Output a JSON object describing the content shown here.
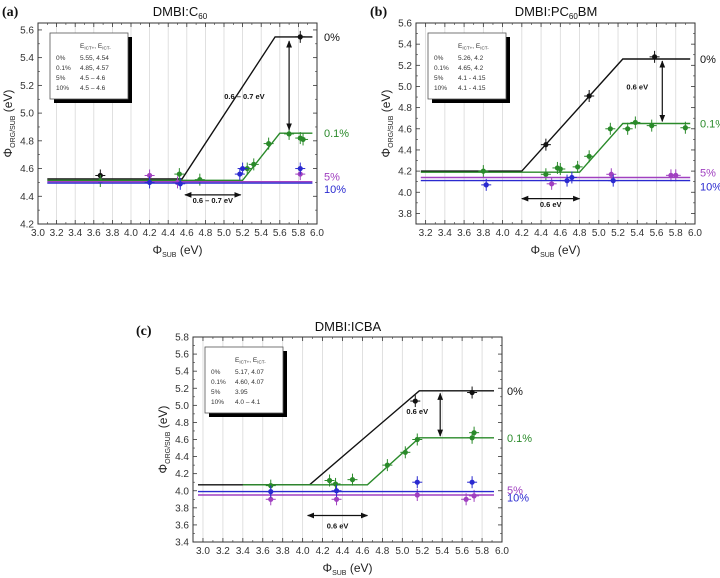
{
  "chart_data": [
    {
      "type": "line",
      "panel_label": "(a)",
      "title": "DMBI:C",
      "title_sub": "60",
      "title_suffix": "",
      "xlabel": "Φ",
      "xlabel_sub": "SUB",
      "xlabel_suffix": " (eV)",
      "ylabel": "Φ",
      "ylabel_sub": "ORG/SUB",
      "ylabel_suffix": " (eV)",
      "xlim": [
        3.0,
        6.0
      ],
      "ylim": [
        4.2,
        5.65
      ],
      "xticks": [
        3.0,
        3.2,
        3.4,
        3.6,
        3.8,
        4.0,
        4.2,
        4.4,
        4.6,
        4.8,
        5.0,
        5.2,
        5.4,
        5.6,
        5.8,
        6.0
      ],
      "yticks": [
        4.2,
        4.4,
        4.6,
        4.8,
        5.0,
        5.2,
        5.4,
        5.6
      ],
      "grid": "vertical",
      "legend_table": {
        "header": [
          "",
          "E_ICT+",
          "E_ICT-"
        ],
        "rows": [
          [
            "0%",
            "5.55,  4.54"
          ],
          [
            "0.1%",
            "4.85,  4.57"
          ],
          [
            "5%",
            "4.5 – 4.6"
          ],
          [
            "10%",
            "4.5 – 4.6"
          ]
        ]
      },
      "series": [
        {
          "name": "0%",
          "color": "#111111",
          "line": [
            [
              3.1,
              4.525
            ],
            [
              4.55,
              4.525
            ],
            [
              5.55,
              5.55
            ],
            [
              5.95,
              5.55
            ]
          ],
          "points": [
            [
              3.67,
              4.55
            ],
            [
              5.82,
              5.55
            ]
          ]
        },
        {
          "name": "0.1%",
          "color": "#2a8a2a",
          "line": [
            [
              3.1,
              4.515
            ],
            [
              5.2,
              4.515
            ],
            [
              5.6,
              4.855
            ],
            [
              5.95,
              4.855
            ]
          ],
          "points": [
            [
              3.67,
              4.51
            ],
            [
              4.52,
              4.56
            ],
            [
              4.74,
              4.52
            ],
            [
              5.25,
              4.6
            ],
            [
              5.32,
              4.63
            ],
            [
              5.48,
              4.78
            ],
            [
              5.7,
              4.85
            ],
            [
              5.82,
              4.82
            ],
            [
              5.85,
              4.81
            ]
          ]
        },
        {
          "name": "5%",
          "color": "#a040c0",
          "line": [
            [
              3.1,
              4.505
            ],
            [
              5.95,
              4.505
            ]
          ],
          "points": [
            [
              4.2,
              4.55
            ],
            [
              4.5,
              4.5
            ],
            [
              5.82,
              4.56
            ]
          ]
        },
        {
          "name": "10%",
          "color": "#2a2ad0",
          "line": [
            [
              3.1,
              4.495
            ],
            [
              5.95,
              4.495
            ]
          ],
          "points": [
            [
              4.2,
              4.5
            ],
            [
              4.53,
              4.49
            ],
            [
              5.17,
              4.56
            ],
            [
              5.2,
              4.6
            ],
            [
              5.82,
              4.6
            ]
          ]
        }
      ],
      "annotations": [
        {
          "text": "0.6 – 0.7 eV",
          "type": "vertical-arrow",
          "x": 5.7,
          "y1": 5.52,
          "y2": 4.88,
          "label_x": 5.22,
          "label_y": 5.1
        },
        {
          "text": "0.6 – 0.7 eV",
          "type": "horizontal-arrow",
          "y": 4.41,
          "x1": 4.58,
          "x2": 5.18,
          "label_x": 4.88,
          "label_y": 4.35
        }
      ]
    },
    {
      "type": "line",
      "panel_label": "(b)",
      "title": "DMBI:PC",
      "title_sub": "60",
      "title_suffix": "BM",
      "xlabel": "Φ",
      "xlabel_sub": "SUB",
      "xlabel_suffix": " (eV)",
      "ylabel": "Φ",
      "ylabel_sub": "ORG/SUB",
      "ylabel_suffix": " (eV)",
      "xlim": [
        3.1,
        6.0
      ],
      "ylim": [
        3.7,
        5.6
      ],
      "xticks": [
        3.2,
        3.4,
        3.6,
        3.8,
        4.0,
        4.2,
        4.4,
        4.6,
        4.8,
        5.0,
        5.2,
        5.4,
        5.6,
        5.8,
        6.0
      ],
      "yticks": [
        3.8,
        4.0,
        4.2,
        4.4,
        4.6,
        4.8,
        5.0,
        5.2,
        5.4,
        5.6
      ],
      "grid": "vertical",
      "legend_table": {
        "header": [
          "",
          "E_ICT+",
          "E_ICT-"
        ],
        "rows": [
          [
            "0%",
            "5.26,  4.2"
          ],
          [
            "0.1%",
            "4.65,  4.2"
          ],
          [
            "5%",
            "4.1 - 4.15"
          ],
          [
            "10%",
            "4.1 - 4.15"
          ]
        ]
      },
      "series": [
        {
          "name": "0%",
          "color": "#111111",
          "line": [
            [
              3.15,
              4.2
            ],
            [
              4.2,
              4.2
            ],
            [
              5.25,
              5.26
            ],
            [
              5.95,
              5.26
            ]
          ],
          "points": [
            [
              4.45,
              4.45
            ],
            [
              4.9,
              4.91
            ],
            [
              5.58,
              5.28
            ]
          ]
        },
        {
          "name": "0.1%",
          "color": "#2a8a2a",
          "line": [
            [
              3.15,
              4.19
            ],
            [
              4.8,
              4.19
            ],
            [
              5.25,
              4.65
            ],
            [
              5.95,
              4.65
            ]
          ],
          "points": [
            [
              3.8,
              4.2
            ],
            [
              4.45,
              4.17
            ],
            [
              4.57,
              4.23
            ],
            [
              4.6,
              4.22
            ],
            [
              4.78,
              4.24
            ],
            [
              4.9,
              4.34
            ],
            [
              5.12,
              4.6
            ],
            [
              5.3,
              4.6
            ],
            [
              5.38,
              4.66
            ],
            [
              5.55,
              4.63
            ],
            [
              5.9,
              4.61
            ]
          ]
        },
        {
          "name": "5%",
          "color": "#a040c0",
          "line": [
            [
              3.15,
              4.14
            ],
            [
              5.95,
              4.14
            ]
          ],
          "points": [
            [
              4.51,
              4.08
            ],
            [
              5.13,
              4.17
            ],
            [
              5.75,
              4.16
            ],
            [
              5.8,
              4.16
            ]
          ]
        },
        {
          "name": "10%",
          "color": "#2a2ad0",
          "line": [
            [
              3.15,
              4.11
            ],
            [
              5.95,
              4.11
            ]
          ],
          "points": [
            [
              3.83,
              4.07
            ],
            [
              4.67,
              4.11
            ],
            [
              4.72,
              4.14
            ],
            [
              5.15,
              4.11
            ]
          ]
        }
      ],
      "annotations": [
        {
          "text": "0.6 eV",
          "type": "vertical-arrow",
          "x": 5.66,
          "y1": 5.24,
          "y2": 4.67,
          "label_x": 5.4,
          "label_y": 4.97
        },
        {
          "text": "0.6 eV",
          "type": "horizontal-arrow",
          "y": 3.94,
          "x1": 4.2,
          "x2": 4.8,
          "label_x": 4.5,
          "label_y": 3.86
        }
      ]
    },
    {
      "type": "line",
      "panel_label": "(c)",
      "title": "DMBI:ICBA",
      "title_sub": "",
      "title_suffix": "",
      "xlabel": "Φ",
      "xlabel_sub": "SUB",
      "xlabel_suffix": " (eV)",
      "ylabel": "Φ",
      "ylabel_sub": "ORG/SUB",
      "ylabel_suffix": " (eV)",
      "xlim": [
        2.9,
        6.0
      ],
      "ylim": [
        3.4,
        5.8
      ],
      "xticks": [
        3.0,
        3.2,
        3.4,
        3.6,
        3.8,
        4.0,
        4.2,
        4.4,
        4.6,
        4.8,
        5.0,
        5.2,
        5.4,
        5.6,
        5.8,
        6.0
      ],
      "yticks": [
        3.4,
        3.6,
        3.8,
        4.0,
        4.2,
        4.4,
        4.6,
        4.8,
        5.0,
        5.2,
        5.4,
        5.6,
        5.8
      ],
      "grid": "vertical",
      "legend_table": {
        "header": [
          "",
          "E_ICT+",
          "E_ICT-"
        ],
        "rows": [
          [
            "0%",
            "5.17,  4.07"
          ],
          [
            "0.1%",
            "4.60,  4.07"
          ],
          [
            "5%",
            "3.95"
          ],
          [
            "10%",
            "4.0 – 4.1"
          ]
        ]
      },
      "series": [
        {
          "name": "0%",
          "color": "#111111",
          "line": [
            [
              2.95,
              4.07
            ],
            [
              4.07,
              4.07
            ],
            [
              5.17,
              5.17
            ],
            [
              5.92,
              5.17
            ]
          ],
          "points": [
            [
              5.13,
              5.05
            ],
            [
              5.7,
              5.15
            ]
          ]
        },
        {
          "name": "0.1%",
          "color": "#2a8a2a",
          "line": [
            [
              3.4,
              4.07
            ],
            [
              4.65,
              4.07
            ],
            [
              5.17,
              4.62
            ],
            [
              5.92,
              4.62
            ]
          ],
          "points": [
            [
              3.68,
              4.06
            ],
            [
              4.27,
              4.12
            ],
            [
              4.33,
              4.08
            ],
            [
              4.5,
              4.13
            ],
            [
              4.85,
              4.3
            ],
            [
              5.03,
              4.45
            ],
            [
              5.15,
              4.6
            ],
            [
              5.7,
              4.62
            ],
            [
              5.72,
              4.68
            ]
          ]
        },
        {
          "name": "5%",
          "color": "#a040c0",
          "line": [
            [
              2.95,
              3.95
            ],
            [
              5.92,
              3.95
            ]
          ],
          "points": [
            [
              3.68,
              3.9
            ],
            [
              4.34,
              3.9
            ],
            [
              5.15,
              3.95
            ],
            [
              5.64,
              3.9
            ],
            [
              5.72,
              3.94
            ]
          ]
        },
        {
          "name": "10%",
          "color": "#2a2ad0",
          "line": [
            [
              2.95,
              3.99
            ],
            [
              5.92,
              3.99
            ]
          ],
          "points": [
            [
              3.68,
              3.99
            ],
            [
              4.34,
              4.0
            ],
            [
              5.15,
              4.1
            ],
            [
              5.7,
              4.1
            ]
          ]
        }
      ],
      "annotations": [
        {
          "text": "0.6 eV",
          "type": "vertical-arrow",
          "x": 5.38,
          "y1": 5.14,
          "y2": 4.64,
          "label_x": 5.15,
          "label_y": 4.9
        },
        {
          "text": "0.6 eV",
          "type": "horizontal-arrow",
          "y": 3.71,
          "x1": 4.05,
          "x2": 4.65,
          "label_x": 4.35,
          "label_y": 3.56
        }
      ]
    }
  ]
}
